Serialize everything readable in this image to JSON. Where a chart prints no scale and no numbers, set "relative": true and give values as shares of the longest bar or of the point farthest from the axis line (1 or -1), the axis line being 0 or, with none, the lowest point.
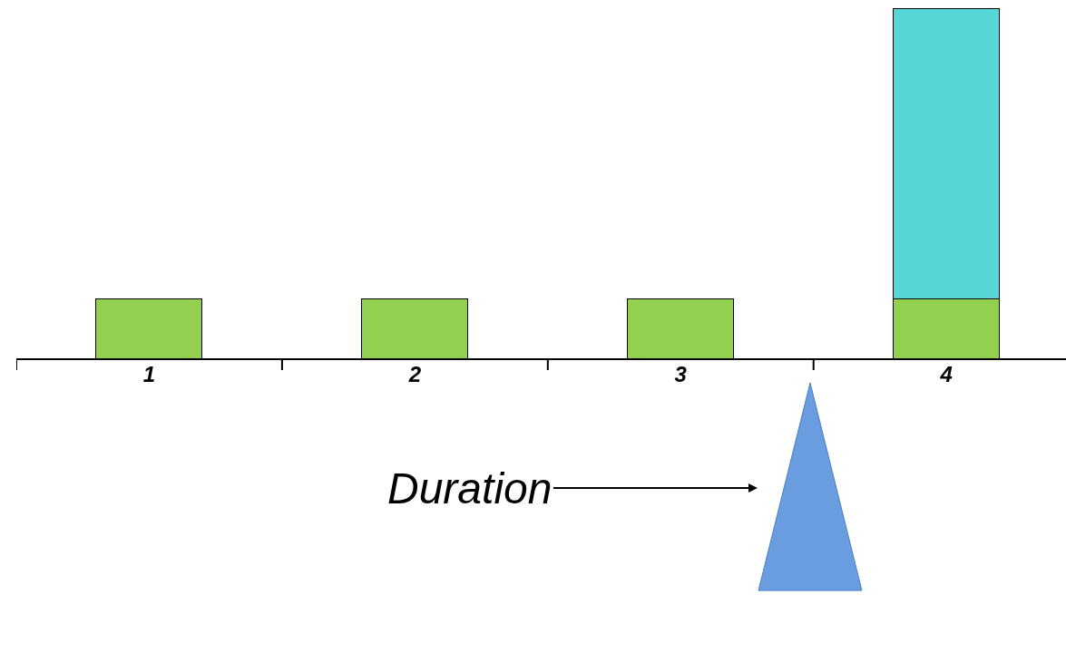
{
  "chart_data": {
    "type": "bar",
    "relative": true,
    "stacked": true,
    "categories": [
      "1",
      "2",
      "3",
      "4"
    ],
    "series": [
      {
        "color": "#92d050",
        "values": [
          0.171,
          0.171,
          0.171,
          0.171
        ]
      },
      {
        "color": "#56d6d6",
        "values": [
          null,
          null,
          null,
          0.829
        ]
      }
    ],
    "annotations": [
      "Duration"
    ]
  }
}
